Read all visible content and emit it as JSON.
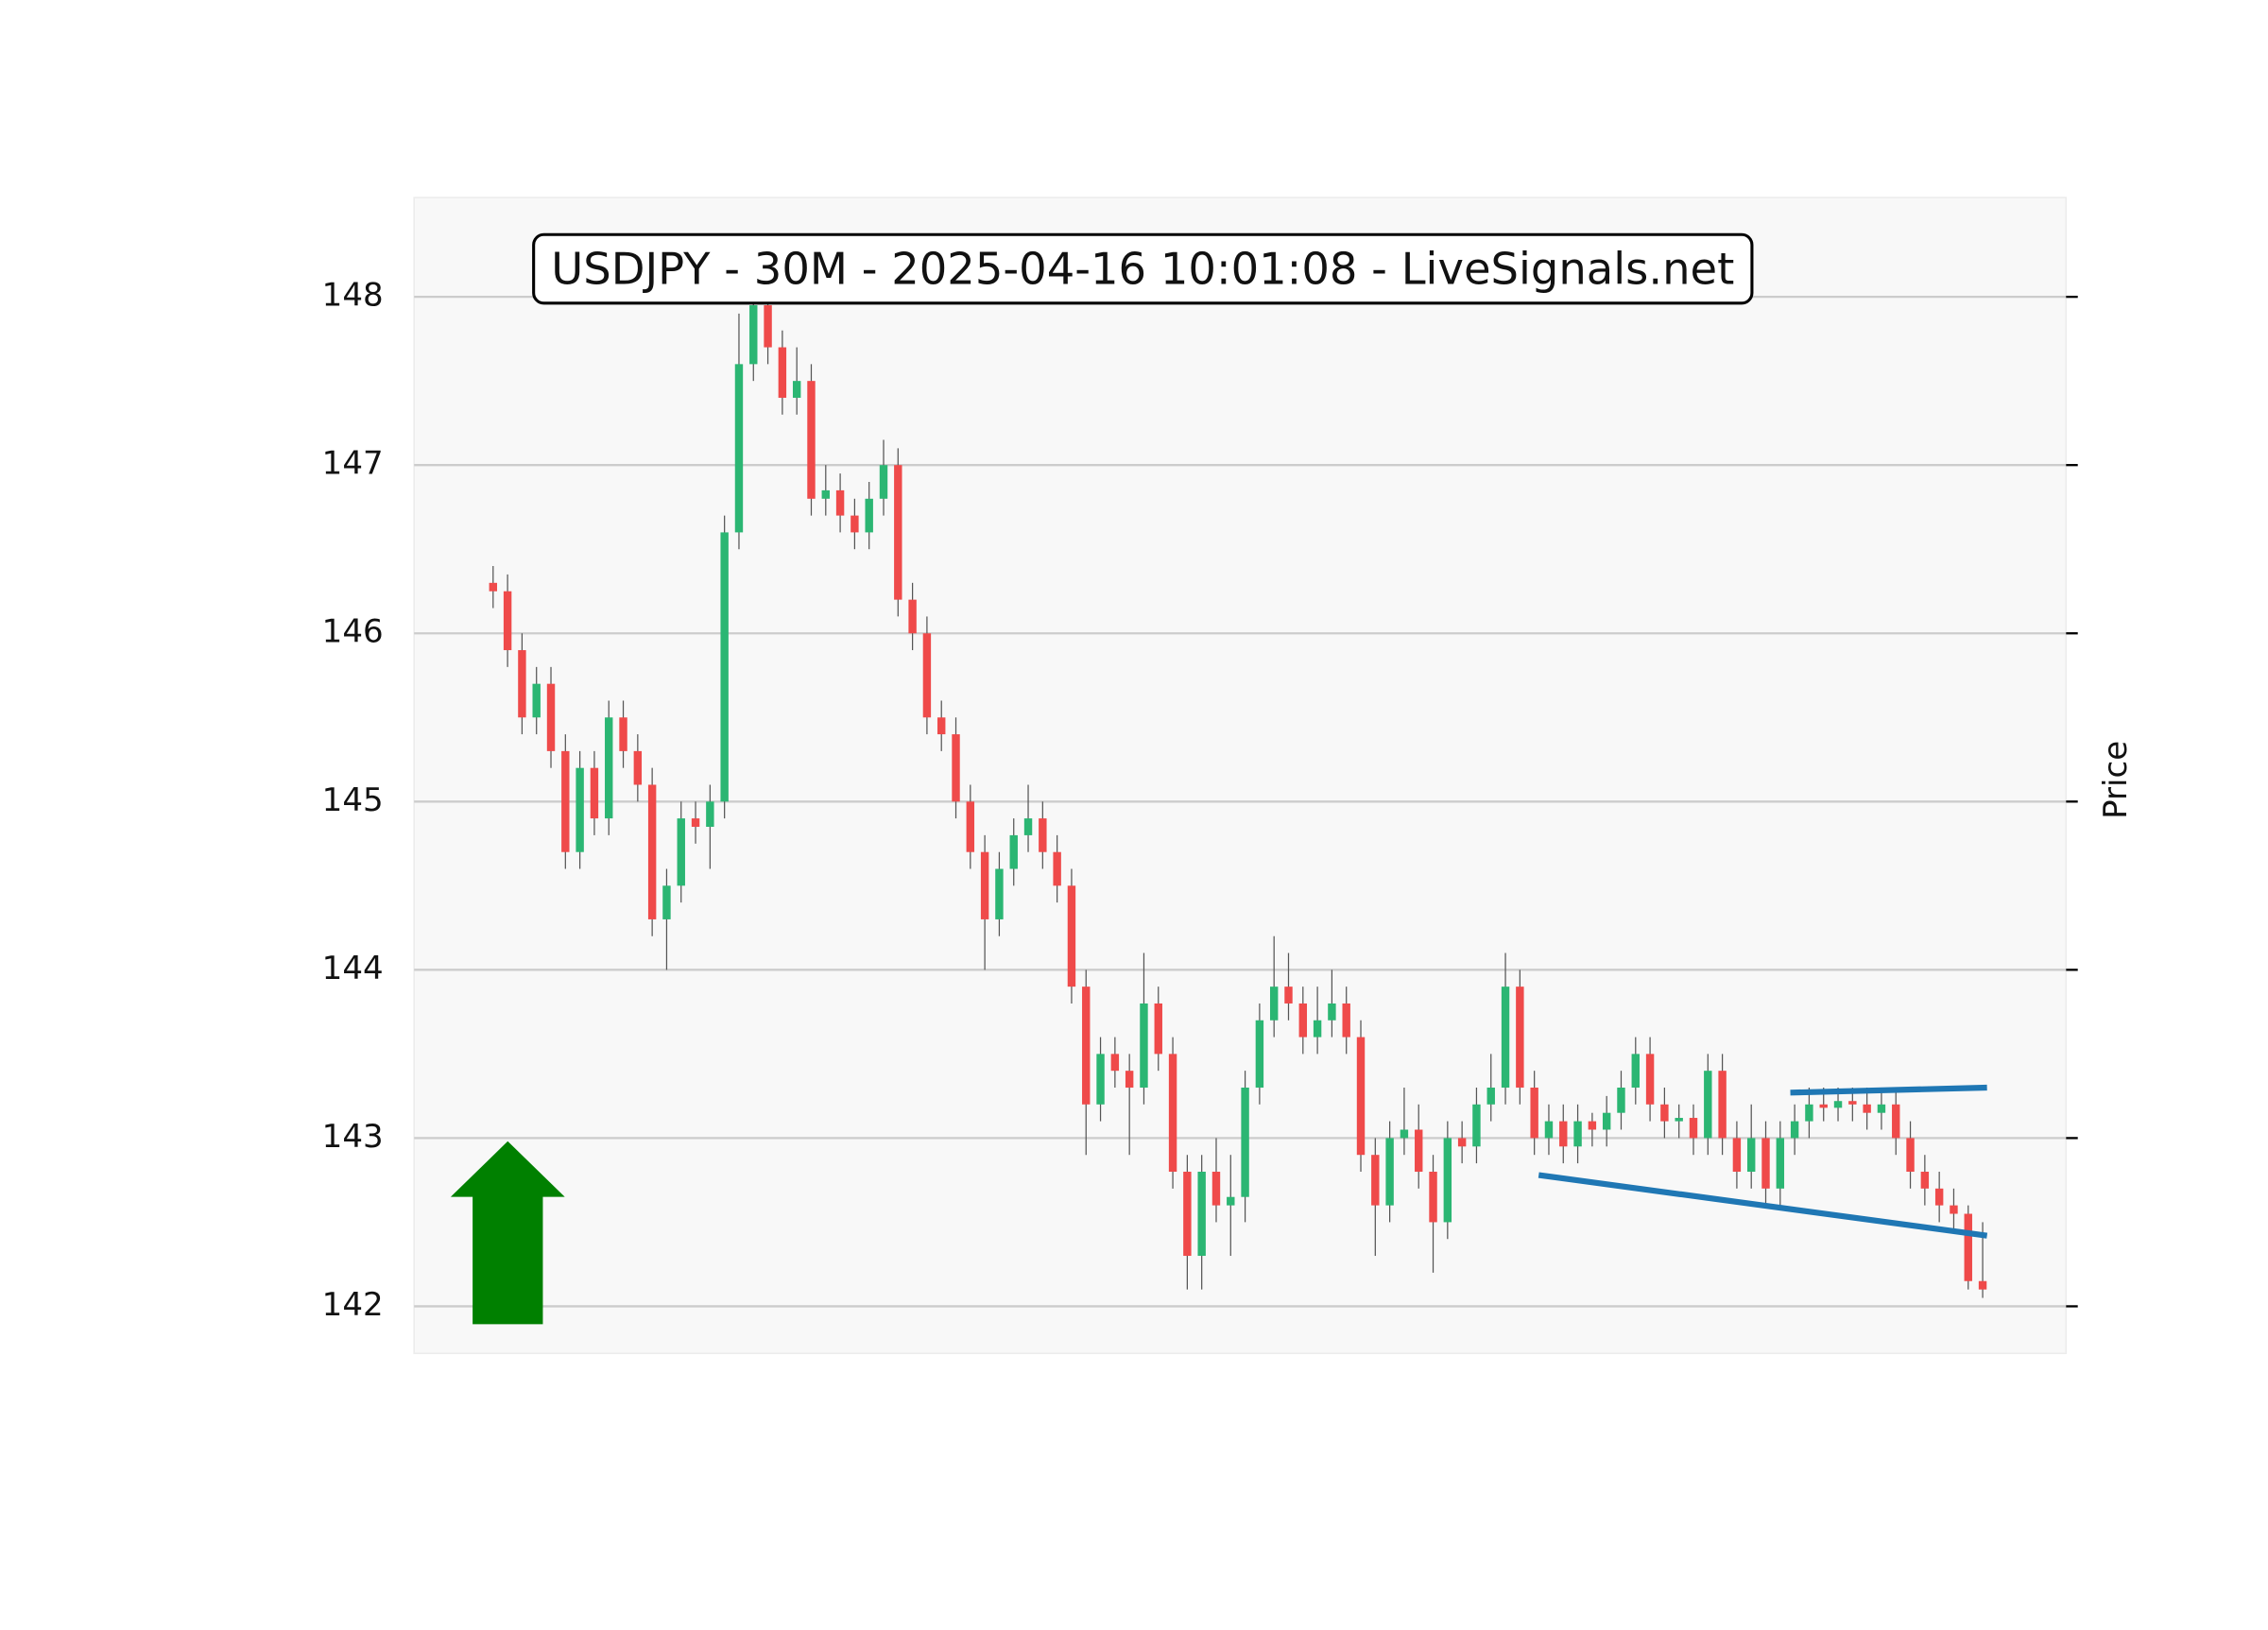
{
  "chart_data": {
    "type": "candlestick",
    "title": "USDJPY - 30M - 2025-04-16 10:01:08 - LiveSignals.net",
    "y_label": "Price",
    "ylim": [
      141.72,
      148.59
    ],
    "yticks": [
      142,
      143,
      144,
      145,
      146,
      147,
      148
    ],
    "grid": true,
    "up_color": "#2bb673",
    "down_color": "#ef4a4a",
    "open": [
      146.3,
      146.25,
      145.9,
      145.5,
      145.7,
      145.3,
      144.7,
      145.2,
      144.9,
      145.5,
      145.3,
      145.1,
      144.3,
      144.5,
      144.9,
      144.85,
      145.0,
      146.6,
      147.6,
      147.95,
      147.7,
      147.4,
      147.5,
      146.8,
      146.85,
      146.7,
      146.6,
      146.8,
      147.0,
      146.2,
      146.0,
      145.5,
      145.4,
      145.0,
      144.7,
      144.3,
      144.6,
      144.8,
      144.9,
      144.7,
      144.5,
      143.9,
      143.2,
      143.5,
      143.4,
      143.3,
      143.8,
      143.5,
      142.8,
      142.3,
      142.8,
      142.6,
      142.65,
      143.3,
      143.7,
      143.9,
      143.8,
      143.6,
      143.7,
      143.8,
      143.6,
      142.9,
      142.6,
      143.0,
      143.05,
      142.8,
      142.5,
      143.0,
      142.95,
      143.2,
      143.3,
      143.9,
      143.3,
      143.0,
      143.1,
      142.95,
      143.1,
      143.05,
      143.15,
      143.3,
      143.5,
      143.2,
      143.1,
      143.12,
      143.0,
      143.4,
      143.0,
      142.8,
      143.0,
      142.7,
      143.0,
      143.1,
      143.2,
      143.18,
      143.22,
      143.2,
      143.15,
      143.2,
      143.0,
      142.8,
      142.7,
      142.6,
      142.55,
      142.15
    ],
    "high": [
      146.4,
      146.35,
      146.0,
      145.8,
      145.8,
      145.4,
      145.3,
      145.3,
      145.6,
      145.6,
      145.4,
      145.2,
      144.6,
      145.0,
      145.0,
      145.1,
      146.7,
      147.9,
      148.05,
      148.0,
      147.8,
      147.7,
      147.6,
      147.0,
      146.95,
      146.8,
      146.9,
      147.15,
      147.1,
      146.3,
      146.1,
      145.6,
      145.5,
      145.1,
      144.8,
      144.7,
      144.9,
      145.1,
      145.0,
      144.8,
      144.6,
      144.0,
      143.6,
      143.6,
      143.5,
      144.1,
      143.9,
      143.6,
      142.9,
      142.9,
      143.0,
      142.9,
      143.4,
      143.8,
      144.2,
      144.1,
      143.9,
      143.9,
      144.0,
      143.9,
      143.7,
      143.0,
      143.1,
      143.3,
      143.2,
      142.9,
      143.1,
      143.1,
      143.3,
      143.5,
      144.1,
      144.0,
      143.4,
      143.2,
      143.2,
      143.2,
      143.15,
      143.25,
      143.4,
      143.6,
      143.6,
      143.3,
      143.2,
      143.2,
      143.5,
      143.5,
      143.1,
      143.2,
      143.1,
      143.1,
      143.2,
      143.3,
      143.3,
      143.3,
      143.3,
      143.3,
      143.3,
      143.3,
      143.1,
      142.9,
      142.8,
      142.7,
      142.6,
      142.5
    ],
    "low": [
      146.15,
      145.8,
      145.4,
      145.4,
      145.2,
      144.6,
      144.6,
      144.8,
      144.8,
      145.2,
      145.0,
      144.2,
      144.0,
      144.4,
      144.75,
      144.6,
      144.9,
      146.5,
      147.5,
      147.6,
      147.3,
      147.3,
      146.7,
      146.7,
      146.6,
      146.5,
      146.5,
      146.7,
      146.1,
      145.9,
      145.4,
      145.3,
      144.9,
      144.6,
      144.0,
      144.2,
      144.5,
      144.7,
      144.6,
      144.4,
      143.8,
      142.9,
      143.1,
      143.3,
      142.9,
      143.2,
      143.4,
      142.7,
      142.1,
      142.1,
      142.5,
      142.3,
      142.5,
      143.2,
      143.6,
      143.7,
      143.5,
      143.5,
      143.6,
      143.5,
      142.8,
      142.3,
      142.5,
      142.9,
      142.7,
      142.2,
      142.4,
      142.85,
      142.85,
      143.1,
      143.2,
      143.2,
      142.9,
      142.9,
      142.85,
      142.85,
      142.95,
      142.95,
      143.05,
      143.2,
      143.1,
      143.0,
      143.0,
      142.9,
      142.9,
      142.9,
      142.7,
      142.7,
      142.6,
      142.6,
      142.9,
      143.0,
      143.1,
      143.1,
      143.1,
      143.05,
      143.05,
      142.9,
      142.7,
      142.6,
      142.5,
      142.45,
      142.1,
      142.05
    ],
    "close": [
      146.25,
      145.9,
      145.5,
      145.7,
      145.3,
      144.7,
      145.2,
      144.9,
      145.5,
      145.3,
      145.1,
      144.3,
      144.5,
      144.9,
      144.85,
      145.0,
      146.6,
      147.6,
      147.95,
      147.7,
      147.4,
      147.5,
      146.8,
      146.85,
      146.7,
      146.6,
      146.8,
      147.0,
      146.2,
      146.0,
      145.5,
      145.4,
      145.0,
      144.7,
      144.3,
      144.6,
      144.8,
      144.9,
      144.7,
      144.5,
      143.9,
      143.2,
      143.5,
      143.4,
      143.3,
      143.8,
      143.5,
      142.8,
      142.3,
      142.8,
      142.6,
      142.65,
      143.3,
      143.7,
      143.9,
      143.8,
      143.6,
      143.7,
      143.8,
      143.6,
      142.9,
      142.6,
      143.0,
      143.05,
      142.8,
      142.5,
      143.0,
      142.95,
      143.2,
      143.3,
      143.9,
      143.3,
      143.0,
      143.1,
      142.95,
      143.1,
      143.05,
      143.15,
      143.3,
      143.5,
      143.2,
      143.1,
      143.12,
      143.0,
      143.4,
      143.0,
      142.8,
      143.0,
      142.7,
      143.0,
      143.1,
      143.2,
      143.18,
      143.22,
      143.2,
      143.15,
      143.2,
      143.0,
      142.8,
      142.7,
      142.6,
      142.55,
      142.15,
      142.1
    ],
    "trend_lines": [
      {
        "x": [
          72.3,
          103.3
        ],
        "y": [
          142.78,
          142.42
        ],
        "color": "#1f77b4"
      },
      {
        "x": [
          89.7,
          103.3
        ],
        "y": [
          143.27,
          143.3
        ],
        "color": "#1f77b4"
      }
    ],
    "signal": {
      "direction": "up",
      "color": "#008000"
    }
  }
}
